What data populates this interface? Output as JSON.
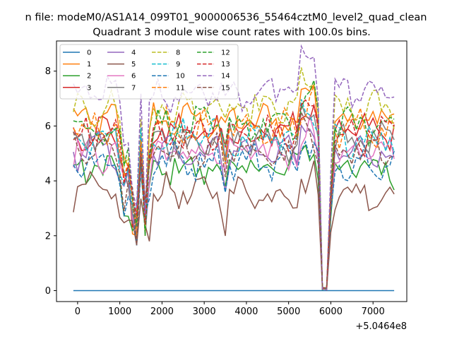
{
  "figure": {
    "suptitle": "n file: modeM0/AS1A14_099T01_9000006536_55464cztM0_level2_quad_clean",
    "title": "Quadrant 3 module wise count rates with 100.0s bins."
  },
  "chart_data": {
    "type": "line",
    "title": "Quadrant 3 module wise count rates with 100.0s bins.",
    "xlabel": "",
    "ylabel": "",
    "x_offset_label": "+5.0464e8",
    "xlim": [
      -500,
      7800
    ],
    "ylim": [
      -0.4,
      9.1
    ],
    "xticks": [
      0,
      1000,
      2000,
      3000,
      4000,
      5000,
      6000,
      7000
    ],
    "xtick_labels": [
      "0",
      "1000",
      "2000",
      "3000",
      "4000",
      "5000",
      "6000",
      "7000"
    ],
    "yticks": [
      0,
      2,
      4,
      6,
      8
    ],
    "ytick_labels": [
      "0",
      "2",
      "4",
      "6",
      "8"
    ],
    "grid": false,
    "legend_position": "upper-left",
    "legend_columns": 4,
    "x": [
      -100,
      0,
      100,
      200,
      300,
      400,
      500,
      600,
      700,
      800,
      900,
      1000,
      1100,
      1200,
      1300,
      1400,
      1500,
      1600,
      1700,
      1800,
      1900,
      2000,
      2100,
      2200,
      2300,
      2400,
      2500,
      2600,
      2700,
      2800,
      2900,
      3000,
      3100,
      3200,
      3300,
      3400,
      3500,
      3600,
      3700,
      3800,
      3900,
      4000,
      4100,
      4200,
      4300,
      4400,
      4500,
      4600,
      4700,
      4800,
      4900,
      5000,
      5100,
      5200,
      5300,
      5400,
      5500,
      5600,
      5700,
      5800,
      5900,
      6000,
      6100,
      6200,
      6300,
      6400,
      6500,
      6600,
      6700,
      6800,
      6900,
      7000,
      7100,
      7200,
      7300,
      7400,
      7500
    ],
    "gaps": {
      "dip_centers_x": [
        1350,
        1650,
        5830
      ],
      "dip_levels": [
        1.45,
        1.7,
        0.02
      ]
    },
    "series": [
      {
        "name": "0",
        "color": "#1f77b4",
        "style": "solid",
        "base": 0.0,
        "flat": true
      },
      {
        "name": "1",
        "color": "#ff7f0e",
        "style": "solid",
        "base": 6.2
      },
      {
        "name": "2",
        "color": "#2ca02c",
        "style": "solid",
        "base": 4.45
      },
      {
        "name": "3",
        "color": "#d62728",
        "style": "solid",
        "base": 5.8
      },
      {
        "name": "4",
        "color": "#9467bd",
        "style": "solid",
        "base": 5.1
      },
      {
        "name": "5",
        "color": "#8c564b",
        "style": "solid",
        "base": 3.55
      },
      {
        "name": "6",
        "color": "#e377c2",
        "style": "solid",
        "base": 5.0
      },
      {
        "name": "7",
        "color": "#7f7f7f",
        "style": "solid",
        "base": 5.45
      },
      {
        "name": "8",
        "color": "#bcbd22",
        "style": "dashed",
        "base": 6.6
      },
      {
        "name": "9",
        "color": "#17becf",
        "style": "dashed",
        "base": 5.6
      },
      {
        "name": "10",
        "color": "#1f77b4",
        "style": "dashed",
        "base": 4.75
      },
      {
        "name": "11",
        "color": "#ff7f0e",
        "style": "dashed",
        "base": 5.95
      },
      {
        "name": "12",
        "color": "#2ca02c",
        "style": "dashed",
        "base": 6.0
      },
      {
        "name": "13",
        "color": "#d62728",
        "style": "dashed",
        "base": 5.7
      },
      {
        "name": "14",
        "color": "#9467bd",
        "style": "dashed",
        "base": 7.25
      },
      {
        "name": "15",
        "color": "#8c564b",
        "style": "dashed",
        "base": 5.15
      }
    ]
  }
}
